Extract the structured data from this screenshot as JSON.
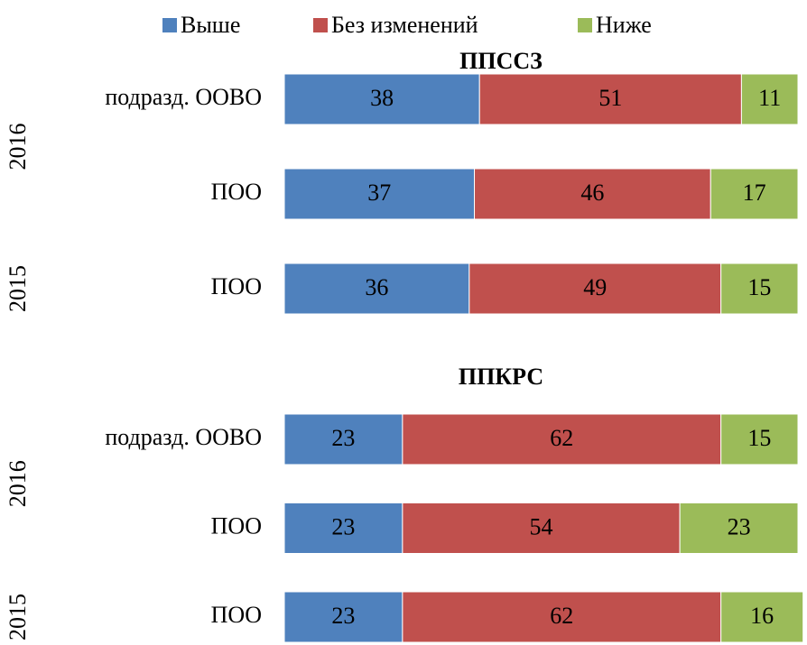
{
  "chart_data": [
    {
      "type": "stacked-bar-horizontal",
      "title": "ППССЗ",
      "groups": [
        {
          "name": "2016",
          "categories": [
            "подразд. ООВО",
            "ПОО"
          ]
        },
        {
          "name": "2015",
          "categories": [
            "ПОО"
          ]
        }
      ],
      "xlim": [
        0,
        100
      ],
      "series": [
        {
          "name": "Выше",
          "color": "#4f81bd",
          "values": [
            38,
            37,
            36
          ]
        },
        {
          "name": "Без изменений",
          "color": "#c0504d",
          "values": [
            51,
            46,
            49
          ]
        },
        {
          "name": "Ниже",
          "color": "#9bbb59",
          "values": [
            11,
            17,
            15
          ]
        }
      ]
    },
    {
      "type": "stacked-bar-horizontal",
      "title": "ППКРС",
      "groups": [
        {
          "name": "2016",
          "categories": [
            "подразд. ООВО",
            "ПОО"
          ]
        },
        {
          "name": "2015",
          "categories": [
            "ПОО"
          ]
        }
      ],
      "xlim": [
        0,
        100
      ],
      "series": [
        {
          "name": "Выше",
          "color": "#4f81bd",
          "values": [
            23,
            23,
            23
          ]
        },
        {
          "name": "Без изменений",
          "color": "#c0504d",
          "values": [
            62,
            54,
            62
          ]
        },
        {
          "name": "Ниже",
          "color": "#9bbb59",
          "values": [
            15,
            23,
            16
          ]
        }
      ]
    }
  ]
}
